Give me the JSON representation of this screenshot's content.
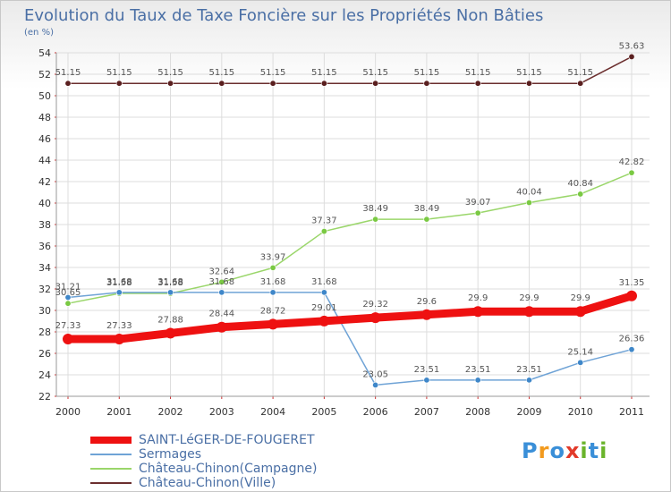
{
  "header": {
    "title": "Evolution du Taux de Taxe Foncière sur les Propriétés Non Bâties",
    "unit": "(en %)"
  },
  "logo": {
    "text": "Proxiti",
    "letters": [
      "P",
      "r",
      "o",
      "x",
      "i",
      "t",
      "i"
    ],
    "colors": [
      "#3a8fd8",
      "#f29a1e",
      "#3a8fd8",
      "#e23a2a",
      "#6ab42b",
      "#3a8fd8",
      "#6ab42b"
    ]
  },
  "chart_data": {
    "type": "line",
    "title": "Evolution du Taux de Taxe Foncière sur les Propriétés Non Bâties",
    "ylabel": "(en %)",
    "xlabel": "",
    "x": [
      "2000",
      "2001",
      "2002",
      "2003",
      "2004",
      "2005",
      "2006",
      "2007",
      "2008",
      "2009",
      "2010",
      "2011"
    ],
    "ylim": [
      22,
      54
    ],
    "yticks": [
      "22",
      "24",
      "26",
      "28",
      "30",
      "32",
      "34",
      "36",
      "38",
      "40",
      "42",
      "44",
      "46",
      "48",
      "50",
      "52",
      "54"
    ],
    "grid": true,
    "legend_position": "bottom-left",
    "series": [
      {
        "name": "Château-Chinon(Ville)",
        "color": "#6b2e2e",
        "marker": "#5a1f1f",
        "weight": "thin",
        "values": [
          51.15,
          51.15,
          51.15,
          51.15,
          51.15,
          51.15,
          51.15,
          51.15,
          51.15,
          51.15,
          51.15,
          53.63
        ],
        "labels": [
          "51.15",
          "51.15",
          "51.15",
          "51.15",
          "51.15",
          "51.15",
          "51.15",
          "51.15",
          "51.15",
          "51.15",
          "51.15",
          "53.63"
        ]
      },
      {
        "name": "Château-Chinon(Campagne)",
        "color": "#9ad66a",
        "marker": "#7ac943",
        "weight": "thin",
        "values": [
          30.65,
          31.58,
          31.58,
          32.64,
          33.97,
          37.37,
          38.49,
          38.49,
          39.07,
          40.04,
          40.84,
          42.82
        ],
        "labels": [
          "30.65",
          "31.58",
          "31.58",
          "32.64",
          "33.97",
          "37.37",
          "38.49",
          "38.49",
          "39.07",
          "40.04",
          "40.84",
          "42.82"
        ]
      },
      {
        "name": "Sermages",
        "color": "#6fa3d6",
        "marker": "#3f87c9",
        "weight": "thin",
        "values": [
          31.21,
          31.68,
          31.68,
          31.68,
          31.68,
          31.68,
          23.05,
          23.51,
          23.51,
          23.51,
          25.14,
          26.36
        ],
        "labels": [
          "31.21",
          "31.68",
          "31.68",
          "31.68",
          "31.68",
          "31.68",
          "23.05",
          "23.51",
          "23.51",
          "23.51",
          "25.14",
          "26.36"
        ]
      },
      {
        "name": "SAINT-LéGER-DE-FOUGERET",
        "color": "#ee1111",
        "marker": "#ee1111",
        "weight": "thick",
        "values": [
          27.33,
          27.33,
          27.88,
          28.44,
          28.72,
          29.01,
          29.32,
          29.6,
          29.9,
          29.9,
          29.9,
          31.35
        ],
        "labels": [
          "27.33",
          "27.33",
          "27.88",
          "28.44",
          "28.72",
          "29.01",
          "29.32",
          "29.6",
          "29.9",
          "29.9",
          "29.9",
          "31.35"
        ]
      }
    ]
  },
  "legend": {
    "items": [
      {
        "label": "SAINT-LéGER-DE-FOUGERET",
        "color": "#ee1111"
      },
      {
        "label": "Sermages",
        "color": "#6fa3d6"
      },
      {
        "label": "Château-Chinon(Campagne)",
        "color": "#9ad66a"
      },
      {
        "label": "Château-Chinon(Ville)",
        "color": "#6b2e2e"
      }
    ]
  }
}
